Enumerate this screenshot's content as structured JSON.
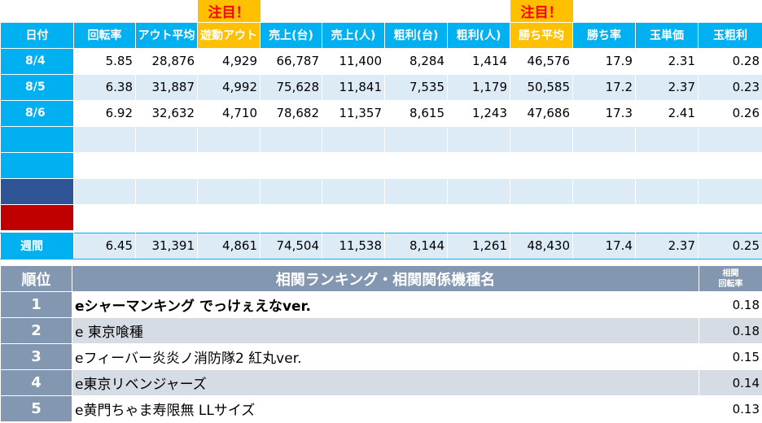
{
  "flags": {
    "col5": "注目！",
    "col10": "注目！"
  },
  "headers": [
    "日付",
    "回転率",
    "アウト平均",
    "遊動アウト",
    "売上(台)",
    "売上(人)",
    "粗利(台)",
    "粗利(人)",
    "勝ち平均",
    "勝ち率",
    "玉単価",
    "玉粗利"
  ],
  "rows": [
    {
      "date": "8/4",
      "values": [
        "5.85",
        "28,876",
        "4,929",
        "66,787",
        "11,400",
        "8,284",
        "1,414",
        "46,576",
        "17.9",
        "2.31",
        "0.28"
      ]
    },
    {
      "date": "8/5",
      "values": [
        "6.38",
        "31,887",
        "4,992",
        "75,628",
        "11,841",
        "7,535",
        "1,179",
        "50,585",
        "17.2",
        "2.37",
        "0.23"
      ]
    },
    {
      "date": "8/6",
      "values": [
        "6.92",
        "32,632",
        "4,710",
        "78,682",
        "11,357",
        "8,615",
        "1,243",
        "47,686",
        "17.3",
        "2.41",
        "0.26"
      ]
    }
  ],
  "weekly": {
    "label": "週間",
    "values": [
      "6.45",
      "31,391",
      "4,861",
      "74,504",
      "11,538",
      "8,144",
      "1,261",
      "48,430",
      "17.4",
      "2.37",
      "0.25"
    ]
  },
  "ranking": {
    "header_rank": "順位",
    "header_title": "相関ランキング・相関関係機種名",
    "header_corr_line1": "相関",
    "header_corr_line2": "回転率",
    "items": [
      {
        "rank": "1",
        "name": "eシャーマンキング でっけぇえなver.",
        "value": "0.18"
      },
      {
        "rank": "2",
        "name": "e 東京喰種",
        "value": "0.18"
      },
      {
        "rank": "3",
        "name": "eフィーバー炎炎ノ消防隊2 紅丸ver.",
        "value": "0.15"
      },
      {
        "rank": "4",
        "name": "e東京リベンジャーズ",
        "value": "0.14"
      },
      {
        "rank": "5",
        "name": "e黄門ちゃま寿限無 LLサイズ",
        "value": "0.13"
      }
    ]
  }
}
